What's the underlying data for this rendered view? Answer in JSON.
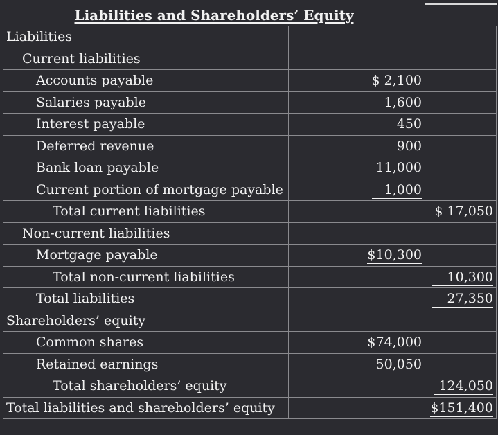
{
  "title": "Liabilities and Shareholders’ Equity",
  "rows": [
    {
      "label": "Liabilities",
      "col1": "",
      "col2": ""
    },
    {
      "label": "Current liabilities",
      "col1": "",
      "col2": ""
    },
    {
      "label": "Accounts payable",
      "col1": "$ 2,100",
      "col2": ""
    },
    {
      "label": "Salaries payable",
      "col1": "1,600",
      "col2": ""
    },
    {
      "label": "Interest payable",
      "col1": "450",
      "col2": ""
    },
    {
      "label": "Deferred revenue",
      "col1": "900",
      "col2": ""
    },
    {
      "label": "Bank loan payable",
      "col1": "11,000",
      "col2": ""
    },
    {
      "label": "Current portion of mortgage payable",
      "col1": "1,000",
      "col2": ""
    },
    {
      "label": "Total current liabilities",
      "col1": "",
      "col2": "$ 17,050"
    },
    {
      "label": "Non-current liabilities",
      "col1": "",
      "col2": ""
    },
    {
      "label": "Mortgage payable",
      "col1": "$10,300",
      "col2": ""
    },
    {
      "label": "Total non-current liabilities",
      "col1": "",
      "col2": "10,300"
    },
    {
      "label": "Total liabilities",
      "col1": "",
      "col2": "27,350"
    },
    {
      "label": "Shareholders’ equity",
      "col1": "",
      "col2": ""
    },
    {
      "label": "Common shares",
      "col1": "$74,000",
      "col2": ""
    },
    {
      "label": "Retained earnings",
      "col1": "50,050",
      "col2": ""
    },
    {
      "label": "Total shareholders’ equity",
      "col1": "",
      "col2": "124,050"
    },
    {
      "label": "Total liabilities and shareholders’ equity",
      "col1": "",
      "col2": "$151,400"
    }
  ]
}
